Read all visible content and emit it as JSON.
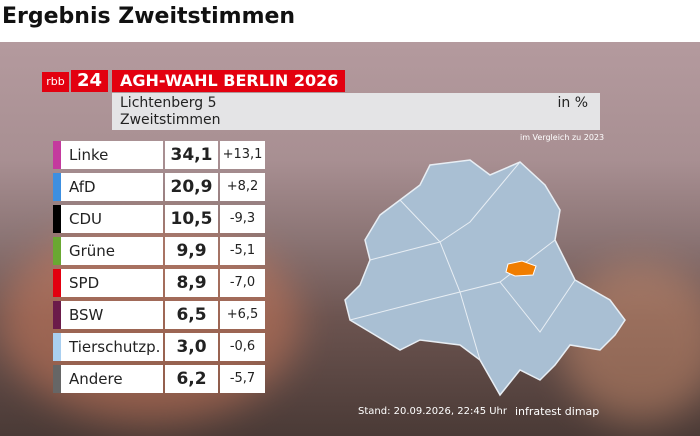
{
  "page_title": "Ergebnis Zweitstimmen",
  "graphic": {
    "logo": {
      "brand": "rbb",
      "number": "24"
    },
    "banner": "AGH-WAHL BERLIN 2026",
    "district": "Lichtenberg 5",
    "vote_type": "Zweitstimmen",
    "unit": "in %",
    "comparison_note": "im Vergleich zu 2023",
    "results": [
      {
        "party": "Linke",
        "color": "#c43a9e",
        "share": "34,1",
        "change": "+13,1"
      },
      {
        "party": "AfD",
        "color": "#3d8fe0",
        "share": "20,9",
        "change": "+8,2"
      },
      {
        "party": "CDU",
        "color": "#000000",
        "share": "10,5",
        "change": "-9,3"
      },
      {
        "party": "Grüne",
        "color": "#6aa832",
        "share": "9,9",
        "change": "-5,1"
      },
      {
        "party": "SPD",
        "color": "#e3000f",
        "share": "8,9",
        "change": "-7,0"
      },
      {
        "party": "BSW",
        "color": "#6b1b4a",
        "share": "6,5",
        "change": "+6,5"
      },
      {
        "party": "Tierschutzp.",
        "color": "#a9cff0",
        "share": "3,0",
        "change": "-0,6"
      },
      {
        "party": "Andere",
        "color": "#666666",
        "share": "6,2",
        "change": "-5,7"
      }
    ],
    "timestamp": "Stand: 20.09.2026, 22:45 Uhr",
    "source": "infratest dimap"
  }
}
